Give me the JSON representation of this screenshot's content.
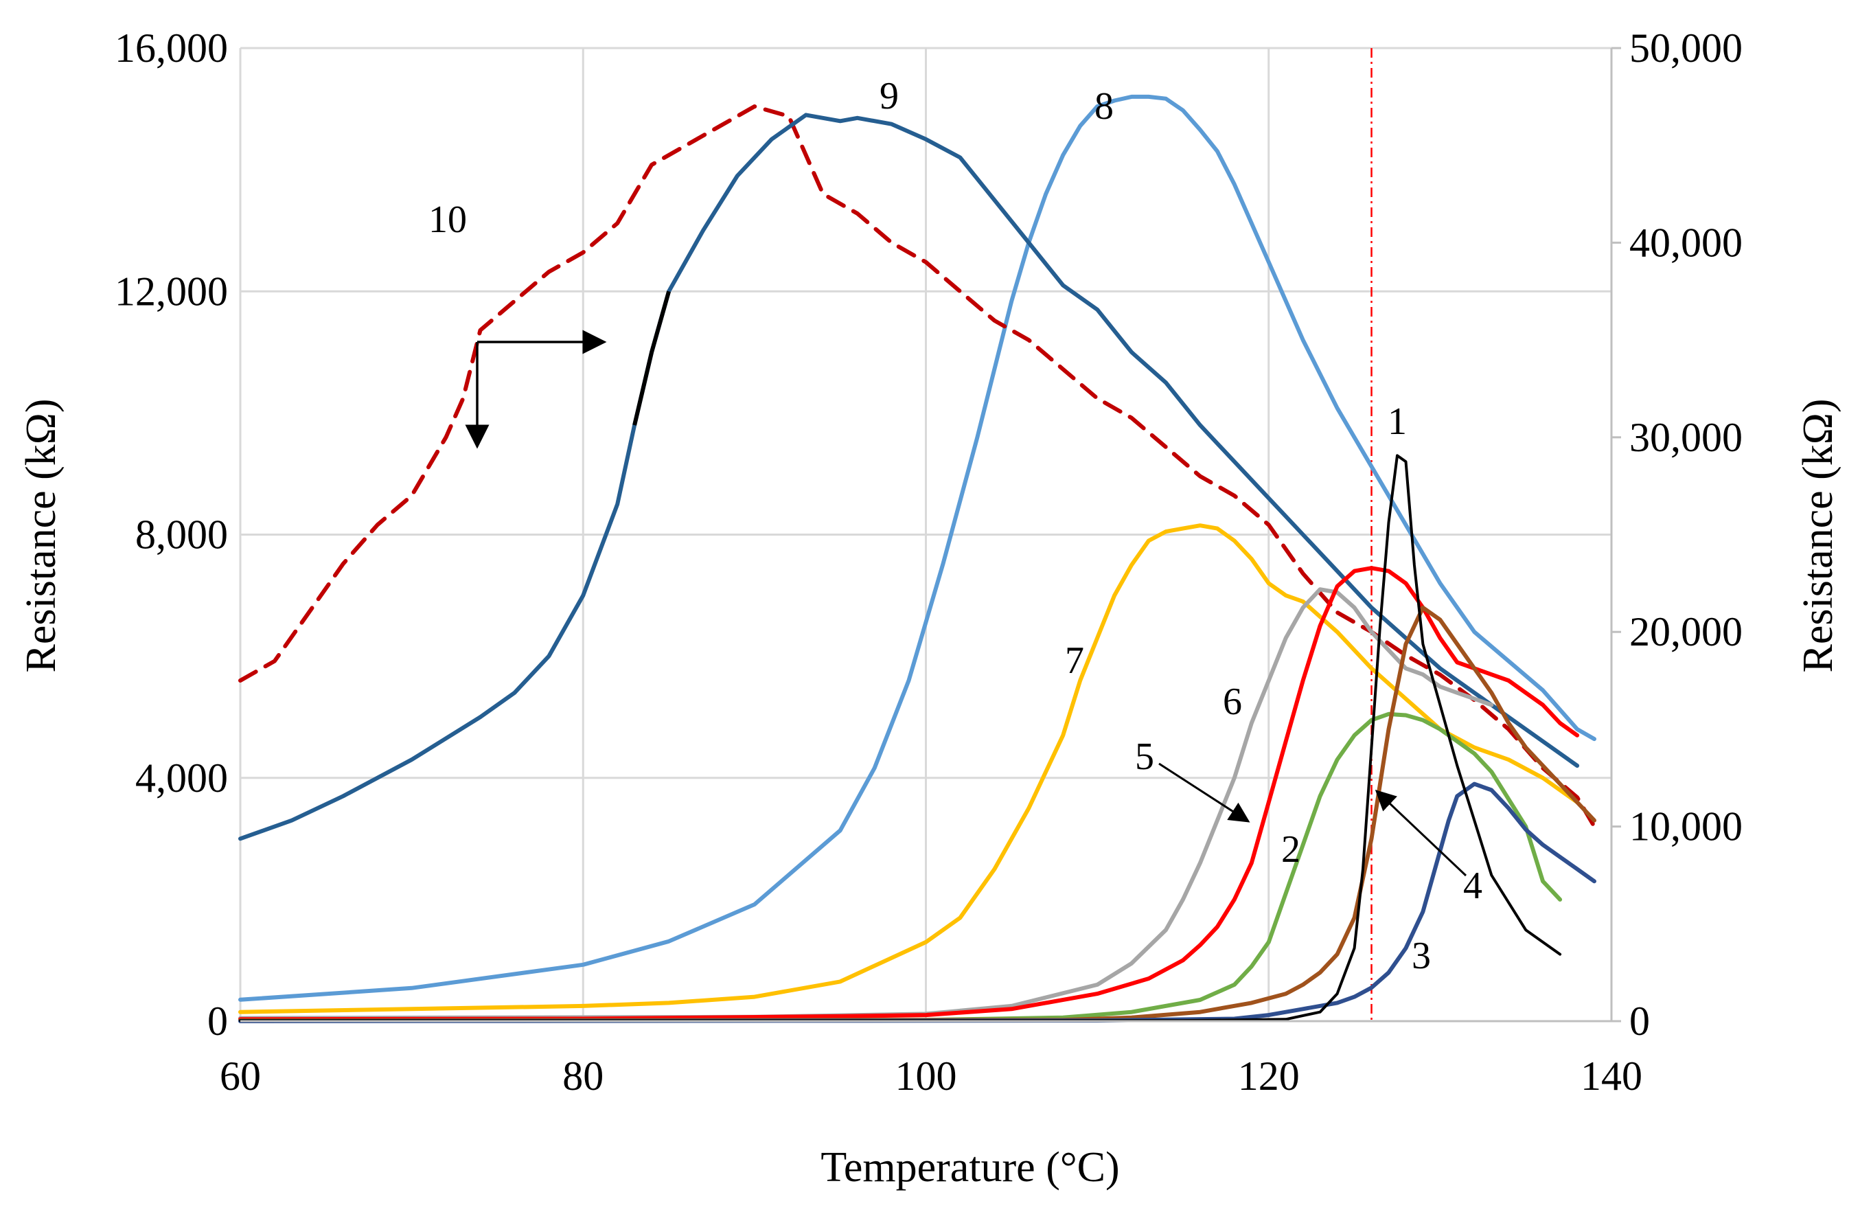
{
  "chart_data": {
    "type": "line",
    "title": "",
    "xlabel": "Temperature (°C)",
    "ylabel_left": "Resistance (kΩ)",
    "ylabel_right": "Resistance (kΩ)",
    "xlim": [
      60,
      140
    ],
    "ylim_left": [
      0,
      16000
    ],
    "ylim_right": [
      0,
      50000
    ],
    "xticks": [
      "60",
      "80",
      "100",
      "120",
      "140"
    ],
    "yticks_left": [
      "0",
      "4,000",
      "8,000",
      "12,000",
      "16,000"
    ],
    "yticks_right": [
      "0",
      "10,000",
      "20,000",
      "30,000",
      "40,000",
      "50,000"
    ],
    "grid": true,
    "reference_line_x": 126,
    "series": [
      {
        "name": "1",
        "label": "1",
        "axis": "left",
        "color": "#000000",
        "dash": false,
        "x": [
          60,
          100,
          115,
          121,
          123,
          124,
          125,
          125.5,
          126,
          126.5,
          127,
          127.5,
          128,
          128.5,
          129,
          130,
          131,
          132,
          133,
          135,
          137
        ],
        "y": [
          10,
          10,
          10,
          30,
          150,
          450,
          1200,
          2500,
          4500,
          6500,
          8200,
          9300,
          9200,
          7500,
          6200,
          5200,
          4200,
          3300,
          2400,
          1500,
          1100
        ]
      },
      {
        "name": "2",
        "label": "2",
        "axis": "left",
        "color": "#70ad47",
        "dash": false,
        "x": [
          60,
          100,
          108,
          112,
          116,
          118,
          119,
          120,
          121,
          122,
          123,
          124,
          125,
          126,
          127,
          128,
          129,
          130,
          131,
          132,
          133,
          135,
          136,
          137
        ],
        "y": [
          10,
          20,
          60,
          150,
          350,
          600,
          900,
          1300,
          2100,
          2900,
          3700,
          4300,
          4700,
          4950,
          5050,
          5030,
          4950,
          4800,
          4600,
          4400,
          4100,
          3200,
          2300,
          2000
        ]
      },
      {
        "name": "3",
        "label": "3",
        "axis": "left",
        "color": "#2f4f8f",
        "dash": false,
        "x": [
          60,
          110,
          118,
          120,
          122,
          124,
          125,
          126,
          127,
          128,
          129,
          130,
          130.5,
          131,
          132,
          133,
          134,
          135,
          136,
          137,
          138,
          139
        ],
        "y": [
          0,
          10,
          40,
          100,
          200,
          300,
          400,
          550,
          800,
          1200,
          1800,
          2800,
          3300,
          3700,
          3900,
          3800,
          3500,
          3150,
          2900,
          2700,
          2500,
          2300
        ]
      },
      {
        "name": "4",
        "label": "4",
        "axis": "left",
        "color": "#a0521c",
        "dash": false,
        "x": [
          60,
          108,
          112,
          116,
          119,
          121,
          122,
          123,
          124,
          125,
          126,
          127,
          128,
          129,
          130,
          131,
          132,
          133,
          134,
          135,
          136,
          137,
          138,
          139
        ],
        "y": [
          10,
          20,
          60,
          150,
          300,
          450,
          600,
          800,
          1100,
          1700,
          3000,
          4800,
          6200,
          6800,
          6600,
          6200,
          5800,
          5400,
          4900,
          4500,
          4200,
          3900,
          3600,
          3300
        ]
      },
      {
        "name": "5",
        "label": "5",
        "axis": "left",
        "color": "#ff0000",
        "dash": false,
        "x": [
          60,
          80,
          95,
          100,
          105,
          110,
          113,
          115,
          116,
          117,
          118,
          119,
          120,
          121,
          122,
          123,
          124,
          125,
          126,
          127,
          128,
          129,
          130,
          131,
          132,
          133,
          134,
          135,
          136,
          137,
          138
        ],
        "y": [
          30,
          40,
          80,
          100,
          200,
          450,
          700,
          1000,
          1250,
          1550,
          2000,
          2600,
          3600,
          4600,
          5600,
          6500,
          7150,
          7400,
          7450,
          7400,
          7200,
          6800,
          6300,
          5900,
          5800,
          5700,
          5600,
          5400,
          5200,
          4900,
          4700
        ]
      },
      {
        "name": "6",
        "label": "6",
        "axis": "left",
        "color": "#a6a6a6",
        "dash": false,
        "x": [
          60,
          90,
          100,
          105,
          110,
          112,
          114,
          115,
          116,
          117,
          118,
          119,
          120,
          121,
          122,
          123,
          124,
          125,
          126,
          127,
          128,
          129,
          130,
          131,
          132,
          133
        ],
        "y": [
          50,
          70,
          120,
          250,
          600,
          950,
          1500,
          2000,
          2600,
          3300,
          4000,
          4900,
          5600,
          6300,
          6800,
          7100,
          7050,
          6800,
          6400,
          6100,
          5800,
          5700,
          5500,
          5400,
          5300,
          5200
        ]
      },
      {
        "name": "7",
        "label": "7",
        "axis": "left",
        "color": "#ffc000",
        "dash": false,
        "x": [
          60,
          70,
          80,
          85,
          90,
          95,
          100,
          102,
          104,
          106,
          107,
          108,
          109,
          110,
          111,
          112,
          113,
          114,
          115,
          116,
          117,
          118,
          119,
          120,
          121,
          122,
          124,
          126,
          128,
          130,
          132,
          134,
          136,
          138
        ],
        "y": [
          150,
          200,
          250,
          300,
          400,
          650,
          1300,
          1700,
          2500,
          3500,
          4100,
          4700,
          5600,
          6300,
          7000,
          7500,
          7900,
          8050,
          8100,
          8150,
          8100,
          7900,
          7600,
          7200,
          7000,
          6900,
          6400,
          5800,
          5300,
          4800,
          4500,
          4300,
          4000,
          3600
        ]
      },
      {
        "name": "8",
        "label": "8",
        "axis": "right",
        "color": "#5b9bd5",
        "dash": false,
        "x": [
          60,
          70,
          80,
          85,
          90,
          95,
          97,
          99,
          101,
          103,
          105,
          106,
          107,
          108,
          109,
          110,
          111,
          112,
          113,
          114,
          115,
          116,
          117,
          118,
          119,
          120,
          122,
          124,
          126,
          128,
          130,
          132,
          134,
          136,
          138,
          139
        ],
        "y": [
          1100,
          1700,
          2900,
          4100,
          6000,
          9800,
          13000,
          17500,
          23500,
          30000,
          37000,
          40000,
          42500,
          44500,
          46000,
          47000,
          47300,
          47500,
          47500,
          47400,
          46800,
          45800,
          44700,
          43000,
          41000,
          39000,
          35000,
          31500,
          28500,
          25500,
          22500,
          20000,
          18500,
          17000,
          15000,
          14500
        ]
      },
      {
        "name": "9",
        "label": "9",
        "axis": "left",
        "color": "#255e91",
        "dash": false,
        "x": [
          60,
          63,
          66,
          70,
          74,
          76,
          78,
          80,
          82,
          83,
          84,
          85,
          87,
          89,
          91,
          92,
          93,
          95,
          96,
          98,
          100,
          102,
          104,
          106,
          108,
          110,
          112,
          114,
          116,
          118,
          120,
          122,
          124,
          126,
          128,
          130,
          132,
          134,
          136,
          138
        ],
        "y": [
          3000,
          3300,
          3700,
          4300,
          5000,
          5400,
          6000,
          7000,
          8500,
          9800,
          11000,
          12000,
          13000,
          13900,
          14500,
          14700,
          14900,
          14800,
          14850,
          14750,
          14500,
          14200,
          13500,
          12800,
          12100,
          11700,
          11000,
          10500,
          9800,
          9200,
          8600,
          8000,
          7400,
          6800,
          6300,
          5800,
          5400,
          5000,
          4600,
          4200
        ]
      },
      {
        "name": "10",
        "label": "10",
        "axis": "right",
        "color": "#c00000",
        "dash": true,
        "x": [
          60,
          62,
          64,
          66,
          68,
          70,
          72,
          73,
          74,
          76,
          78,
          80,
          82,
          84,
          86,
          88,
          90,
          92,
          94,
          96,
          98,
          100,
          102,
          104,
          106,
          108,
          110,
          112,
          114,
          116,
          118,
          120,
          122,
          124,
          126,
          128,
          130,
          132,
          134,
          136,
          138,
          139
        ],
        "y": [
          17500,
          18500,
          21000,
          23500,
          25500,
          27000,
          30000,
          32000,
          35500,
          37000,
          38500,
          39500,
          41000,
          44000,
          45000,
          46000,
          47000,
          46500,
          42500,
          41500,
          40000,
          39000,
          37500,
          36000,
          35000,
          33500,
          32000,
          31000,
          29500,
          28000,
          27000,
          25500,
          23000,
          21000,
          20000,
          18800,
          17800,
          16500,
          15000,
          13000,
          11500,
          10000
        ]
      }
    ],
    "annotations": [
      {
        "text": "10",
        "target": "10"
      },
      {
        "text": "9",
        "target": "9"
      },
      {
        "text": "8",
        "target": "8"
      },
      {
        "text": "7",
        "target": "7"
      },
      {
        "text": "6",
        "target": "6"
      },
      {
        "text": "5",
        "target": "5"
      },
      {
        "text": "2",
        "target": "2"
      },
      {
        "text": "1",
        "target": "1"
      },
      {
        "text": "4",
        "target": "4"
      },
      {
        "text": "3",
        "target": "3"
      }
    ]
  }
}
